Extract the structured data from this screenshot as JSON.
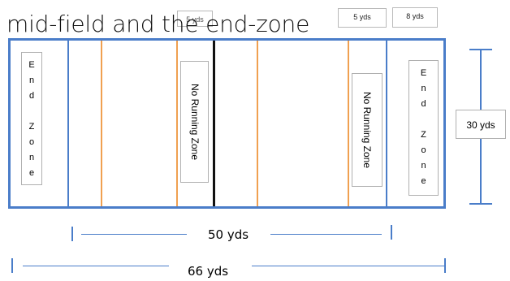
{
  "title": "mid-field and the end-zone",
  "tags": {
    "overlay_5yds": "5 yds",
    "top_5yds": "5 yds",
    "top_8yds": "8 yds"
  },
  "field": {
    "left_end_zone_letters": [
      "E",
      "n",
      "d",
      "",
      "Z",
      "o",
      "n",
      "e"
    ],
    "right_end_zone_letters": [
      "E",
      "n",
      "d",
      "",
      "Z",
      "o",
      "n",
      "e"
    ],
    "no_running_zone_left": "No Running Zone",
    "no_running_zone_right": "No Running Zone"
  },
  "dimensions": {
    "height_label": "30 yds",
    "inner_width_label": "50 yds",
    "total_width_label": "66 yds"
  },
  "colors": {
    "boundary": "#4a7dc9",
    "zone_line": "#f0a050",
    "midfield_line": "#111111"
  }
}
